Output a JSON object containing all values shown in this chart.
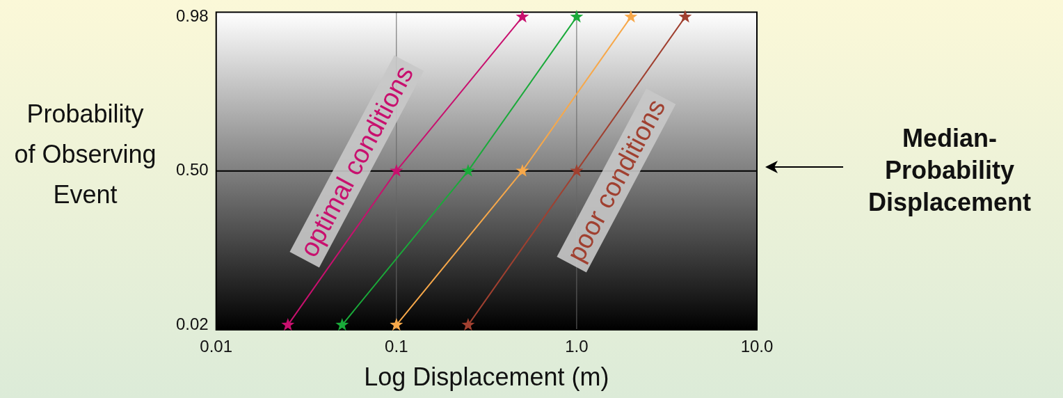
{
  "chart_data": {
    "type": "line",
    "xlabel": "Log Displacement (m)",
    "ylabel": "Probability of Observing Event",
    "log": "x",
    "xlim": [
      0.01,
      10
    ],
    "xticks": [
      {
        "value": 0.01,
        "label": "0.01"
      },
      {
        "value": 0.1,
        "label": "0.1"
      },
      {
        "value": 1,
        "label": "1.0"
      },
      {
        "value": 10,
        "label": "10.0"
      }
    ],
    "ylim": [
      0.005,
      0.995
    ],
    "yticks": [
      0.02,
      {
        "value": 0.5,
        "label": "0.50"
      },
      0.98
    ],
    "grid": "x",
    "marker": "star",
    "line_style": "solid",
    "legend": false,
    "series": [
      {
        "color": "#c8106e",
        "x": [
          0.025,
          0.1,
          0.5
        ],
        "values": [
          0.02,
          0.5,
          0.98
        ]
      },
      {
        "color": "#1aaa3a",
        "x": [
          0.05,
          0.25,
          1
        ],
        "values": [
          0.02,
          0.5,
          0.98
        ]
      },
      {
        "color": "#f7a84a",
        "x": [
          0.1,
          0.5,
          2
        ],
        "values": [
          0.02,
          0.5,
          0.98
        ]
      },
      {
        "color": "#a04030",
        "x": [
          0.25,
          1,
          4
        ],
        "values": [
          0.02,
          0.5,
          0.98
        ]
      }
    ],
    "ref_lines": [
      {
        "axis": "y",
        "value": 0.5,
        "label": "Median-Probability Displacement",
        "color": "#000000"
      }
    ],
    "annotations": [
      "optimal conditions",
      "poor conditions"
    ]
  }
}
